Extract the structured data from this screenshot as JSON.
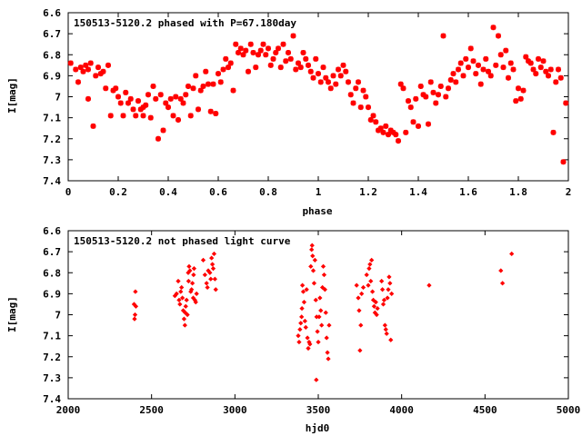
{
  "chart_data": [
    {
      "type": "scatter",
      "title": "150513-5120.2 phased with P=67.180day",
      "xlabel": "phase",
      "ylabel": "I[mag]",
      "xlim": [
        0,
        2
      ],
      "ylim": [
        6.6,
        7.4
      ],
      "y_inverted": true,
      "x_ticks": [
        0,
        0.2,
        0.4,
        0.6,
        0.8,
        1,
        1.2,
        1.4,
        1.6,
        1.8,
        2
      ],
      "x_tick_labels": [
        "0",
        "0.2",
        "0.4",
        "0.6",
        "0.8",
        "1",
        "1.2",
        "1.4",
        "1.6",
        "1.8",
        "2"
      ],
      "y_ticks": [
        6.6,
        6.7,
        6.8,
        6.9,
        7.0,
        7.1,
        7.2,
        7.3,
        7.4
      ],
      "y_tick_labels": [
        "6.6",
        "6.7",
        "6.8",
        "6.9",
        "7",
        "7.1",
        "7.2",
        "7.3",
        "7.4"
      ],
      "marker_color": "#ff0000",
      "marker": "star",
      "points": [
        [
          0.01,
          6.84
        ],
        [
          0.03,
          6.87
        ],
        [
          0.04,
          6.93
        ],
        [
          0.05,
          6.86
        ],
        [
          0.06,
          6.88
        ],
        [
          0.07,
          6.85
        ],
        [
          0.08,
          6.87
        ],
        [
          0.08,
          7.01
        ],
        [
          0.09,
          6.84
        ],
        [
          0.1,
          7.14
        ],
        [
          0.11,
          6.9
        ],
        [
          0.12,
          6.86
        ],
        [
          0.13,
          6.89
        ],
        [
          0.14,
          6.88
        ],
        [
          0.15,
          6.96
        ],
        [
          0.16,
          6.85
        ],
        [
          0.17,
          7.09
        ],
        [
          0.18,
          6.97
        ],
        [
          0.19,
          6.96
        ],
        [
          0.2,
          7.0
        ],
        [
          0.21,
          7.03
        ],
        [
          0.22,
          7.09
        ],
        [
          0.23,
          6.98
        ],
        [
          0.24,
          7.03
        ],
        [
          0.25,
          7.01
        ],
        [
          0.26,
          7.06
        ],
        [
          0.27,
          7.09
        ],
        [
          0.28,
          7.02
        ],
        [
          0.29,
          7.06
        ],
        [
          0.3,
          7.05
        ],
        [
          0.3,
          7.09
        ],
        [
          0.31,
          7.04
        ],
        [
          0.32,
          6.99
        ],
        [
          0.33,
          7.1
        ],
        [
          0.34,
          6.95
        ],
        [
          0.35,
          7.01
        ],
        [
          0.36,
          7.2
        ],
        [
          0.37,
          6.99
        ],
        [
          0.38,
          7.16
        ],
        [
          0.39,
          7.03
        ],
        [
          0.4,
          7.05
        ],
        [
          0.41,
          7.01
        ],
        [
          0.42,
          7.09
        ],
        [
          0.43,
          7.0
        ],
        [
          0.44,
          7.11
        ],
        [
          0.45,
          7.01
        ],
        [
          0.46,
          7.03
        ],
        [
          0.47,
          6.99
        ],
        [
          0.48,
          6.95
        ],
        [
          0.49,
          7.09
        ],
        [
          0.5,
          6.96
        ],
        [
          0.51,
          6.9
        ],
        [
          0.52,
          7.06
        ],
        [
          0.53,
          6.97
        ],
        [
          0.54,
          6.95
        ],
        [
          0.55,
          6.88
        ],
        [
          0.56,
          6.94
        ],
        [
          0.57,
          7.07
        ],
        [
          0.58,
          6.94
        ],
        [
          0.59,
          7.08
        ],
        [
          0.6,
          6.89
        ],
        [
          0.61,
          6.93
        ],
        [
          0.62,
          6.87
        ],
        [
          0.63,
          6.82
        ],
        [
          0.64,
          6.86
        ],
        [
          0.65,
          6.84
        ],
        [
          0.66,
          6.97
        ],
        [
          0.67,
          6.75
        ],
        [
          0.68,
          6.79
        ],
        [
          0.69,
          6.77
        ],
        [
          0.7,
          6.8
        ],
        [
          0.71,
          6.78
        ],
        [
          0.72,
          6.88
        ],
        [
          0.73,
          6.75
        ],
        [
          0.74,
          6.79
        ],
        [
          0.75,
          6.86
        ],
        [
          0.76,
          6.8
        ],
        [
          0.77,
          6.78
        ],
        [
          0.78,
          6.75
        ],
        [
          0.79,
          6.8
        ],
        [
          0.8,
          6.77
        ],
        [
          0.81,
          6.85
        ],
        [
          0.82,
          6.82
        ],
        [
          0.83,
          6.79
        ],
        [
          0.84,
          6.77
        ],
        [
          0.85,
          6.86
        ],
        [
          0.86,
          6.75
        ],
        [
          0.87,
          6.83
        ],
        [
          0.88,
          6.79
        ],
        [
          0.89,
          6.82
        ],
        [
          0.9,
          6.71
        ],
        [
          0.91,
          6.87
        ],
        [
          0.92,
          6.84
        ],
        [
          0.93,
          6.86
        ],
        [
          0.94,
          6.79
        ],
        [
          0.95,
          6.82
        ],
        [
          0.96,
          6.85
        ],
        [
          0.97,
          6.88
        ],
        [
          0.98,
          6.91
        ],
        [
          0.99,
          6.82
        ],
        [
          1.0,
          6.89
        ],
        [
          1.01,
          6.93
        ],
        [
          1.02,
          6.86
        ],
        [
          1.03,
          6.91
        ],
        [
          1.04,
          6.93
        ],
        [
          1.05,
          6.96
        ],
        [
          1.06,
          6.9
        ],
        [
          1.07,
          6.94
        ],
        [
          1.08,
          6.87
        ],
        [
          1.09,
          6.9
        ],
        [
          1.1,
          6.85
        ],
        [
          1.11,
          6.88
        ],
        [
          1.12,
          6.93
        ],
        [
          1.13,
          6.99
        ],
        [
          1.14,
          7.03
        ],
        [
          1.15,
          6.96
        ],
        [
          1.16,
          6.93
        ],
        [
          1.17,
          7.05
        ],
        [
          1.18,
          6.97
        ],
        [
          1.19,
          7.0
        ],
        [
          1.2,
          7.05
        ],
        [
          1.21,
          7.11
        ],
        [
          1.22,
          7.09
        ],
        [
          1.23,
          7.12
        ],
        [
          1.24,
          7.16
        ],
        [
          1.25,
          7.15
        ],
        [
          1.26,
          7.17
        ],
        [
          1.27,
          7.14
        ],
        [
          1.28,
          7.18
        ],
        [
          1.29,
          7.16
        ],
        [
          1.3,
          7.17
        ],
        [
          1.31,
          7.18
        ],
        [
          1.32,
          7.21
        ],
        [
          1.33,
          6.94
        ],
        [
          1.34,
          6.96
        ],
        [
          1.35,
          7.17
        ],
        [
          1.36,
          7.02
        ],
        [
          1.37,
          7.05
        ],
        [
          1.38,
          7.12
        ],
        [
          1.39,
          7.01
        ],
        [
          1.4,
          7.14
        ],
        [
          1.41,
          6.95
        ],
        [
          1.42,
          6.99
        ],
        [
          1.43,
          7.0
        ],
        [
          1.44,
          7.13
        ],
        [
          1.45,
          6.93
        ],
        [
          1.46,
          6.98
        ],
        [
          1.47,
          7.03
        ],
        [
          1.48,
          6.99
        ],
        [
          1.49,
          6.95
        ],
        [
          1.5,
          6.71
        ],
        [
          1.51,
          7.0
        ],
        [
          1.52,
          6.96
        ],
        [
          1.53,
          6.92
        ],
        [
          1.54,
          6.89
        ],
        [
          1.55,
          6.93
        ],
        [
          1.56,
          6.87
        ],
        [
          1.57,
          6.84
        ],
        [
          1.58,
          6.9
        ],
        [
          1.59,
          6.82
        ],
        [
          1.6,
          6.86
        ],
        [
          1.61,
          6.77
        ],
        [
          1.62,
          6.83
        ],
        [
          1.63,
          6.89
        ],
        [
          1.64,
          6.85
        ],
        [
          1.65,
          6.94
        ],
        [
          1.66,
          6.87
        ],
        [
          1.67,
          6.82
        ],
        [
          1.68,
          6.88
        ],
        [
          1.69,
          6.9
        ],
        [
          1.7,
          6.67
        ],
        [
          1.71,
          6.85
        ],
        [
          1.72,
          6.71
        ],
        [
          1.73,
          6.8
        ],
        [
          1.74,
          6.86
        ],
        [
          1.75,
          6.78
        ],
        [
          1.76,
          6.91
        ],
        [
          1.77,
          6.84
        ],
        [
          1.78,
          6.87
        ],
        [
          1.79,
          7.02
        ],
        [
          1.8,
          6.96
        ],
        [
          1.81,
          7.01
        ],
        [
          1.82,
          6.97
        ],
        [
          1.83,
          6.81
        ],
        [
          1.84,
          6.83
        ],
        [
          1.85,
          6.84
        ],
        [
          1.86,
          6.87
        ],
        [
          1.87,
          6.89
        ],
        [
          1.88,
          6.82
        ],
        [
          1.89,
          6.86
        ],
        [
          1.9,
          6.83
        ],
        [
          1.91,
          6.88
        ],
        [
          1.92,
          6.9
        ],
        [
          1.93,
          6.87
        ],
        [
          1.94,
          7.17
        ],
        [
          1.95,
          6.93
        ],
        [
          1.96,
          6.87
        ],
        [
          1.97,
          6.91
        ],
        [
          1.98,
          7.31
        ],
        [
          1.99,
          7.03
        ]
      ]
    },
    {
      "type": "scatter",
      "title": "150513-5120.2 not phased light curve",
      "xlabel": "hjd0",
      "ylabel": "I[mag]",
      "xlim": [
        2000,
        5000
      ],
      "ylim": [
        6.6,
        7.4
      ],
      "y_inverted": true,
      "x_ticks": [
        2000,
        2500,
        3000,
        3500,
        4000,
        4500,
        5000
      ],
      "x_tick_labels": [
        "2000",
        "2500",
        "3000",
        "3500",
        "4000",
        "4500",
        "5000"
      ],
      "y_ticks": [
        6.6,
        6.7,
        6.8,
        6.9,
        7.0,
        7.1,
        7.2,
        7.3,
        7.4
      ],
      "y_tick_labels": [
        "6.6",
        "6.7",
        "6.8",
        "6.9",
        "7",
        "7.1",
        "7.2",
        "7.3",
        "7.4"
      ],
      "marker_color": "#ff0000",
      "marker": "diamond",
      "points": [
        [
          2395,
          6.95
        ],
        [
          2398,
          7.02
        ],
        [
          2401,
          7.0
        ],
        [
          2403,
          6.89
        ],
        [
          2406,
          6.96
        ],
        [
          2640,
          6.91
        ],
        [
          2650,
          6.9
        ],
        [
          2660,
          6.84
        ],
        [
          2665,
          6.93
        ],
        [
          2670,
          6.95
        ],
        [
          2675,
          6.89
        ],
        [
          2680,
          6.87
        ],
        [
          2685,
          6.92
        ],
        [
          2690,
          6.98
        ],
        [
          2695,
          7.02
        ],
        [
          2700,
          7.05
        ],
        [
          2702,
          6.99
        ],
        [
          2705,
          6.96
        ],
        [
          2710,
          6.93
        ],
        [
          2715,
          7.0
        ],
        [
          2720,
          6.8
        ],
        [
          2722,
          6.84
        ],
        [
          2725,
          6.77
        ],
        [
          2730,
          6.79
        ],
        [
          2735,
          6.89
        ],
        [
          2740,
          6.88
        ],
        [
          2745,
          6.85
        ],
        [
          2750,
          6.92
        ],
        [
          2752,
          6.81
        ],
        [
          2755,
          6.78
        ],
        [
          2760,
          6.93
        ],
        [
          2765,
          6.94
        ],
        [
          2770,
          6.9
        ],
        [
          2810,
          6.74
        ],
        [
          2820,
          6.81
        ],
        [
          2830,
          6.85
        ],
        [
          2835,
          6.87
        ],
        [
          2840,
          6.79
        ],
        [
          2850,
          6.8
        ],
        [
          2855,
          6.83
        ],
        [
          2860,
          6.73
        ],
        [
          2865,
          6.76
        ],
        [
          2870,
          6.78
        ],
        [
          2875,
          6.71
        ],
        [
          2880,
          6.83
        ],
        [
          2885,
          6.88
        ],
        [
          3380,
          7.1
        ],
        [
          3385,
          7.13
        ],
        [
          3390,
          7.07
        ],
        [
          3395,
          7.04
        ],
        [
          3400,
          7.01
        ],
        [
          3402,
          6.97
        ],
        [
          3405,
          6.86
        ],
        [
          3410,
          6.89
        ],
        [
          3415,
          6.94
        ],
        [
          3420,
          7.03
        ],
        [
          3425,
          7.06
        ],
        [
          3430,
          6.88
        ],
        [
          3435,
          7.11
        ],
        [
          3440,
          7.16
        ],
        [
          3445,
          7.13
        ],
        [
          3450,
          7.14
        ],
        [
          3455,
          6.77
        ],
        [
          3460,
          6.69
        ],
        [
          3463,
          6.67
        ],
        [
          3466,
          6.72
        ],
        [
          3470,
          6.79
        ],
        [
          3475,
          6.85
        ],
        [
          3480,
          6.74
        ],
        [
          3485,
          6.93
        ],
        [
          3488,
          7.31
        ],
        [
          3490,
          7.01
        ],
        [
          3495,
          7.08
        ],
        [
          3500,
          7.13
        ],
        [
          3505,
          7.01
        ],
        [
          3510,
          6.92
        ],
        [
          3515,
          6.98
        ],
        [
          3520,
          7.05
        ],
        [
          3525,
          6.87
        ],
        [
          3530,
          6.77
        ],
        [
          3535,
          6.81
        ],
        [
          3540,
          6.88
        ],
        [
          3545,
          6.99
        ],
        [
          3550,
          7.11
        ],
        [
          3555,
          7.18
        ],
        [
          3560,
          7.21
        ],
        [
          3565,
          7.05
        ],
        [
          3730,
          6.86
        ],
        [
          3740,
          6.92
        ],
        [
          3745,
          6.98
        ],
        [
          3750,
          7.17
        ],
        [
          3755,
          7.05
        ],
        [
          3760,
          6.9
        ],
        [
          3770,
          6.87
        ],
        [
          3790,
          6.81
        ],
        [
          3800,
          6.86
        ],
        [
          3805,
          6.78
        ],
        [
          3810,
          6.76
        ],
        [
          3815,
          6.84
        ],
        [
          3820,
          6.74
        ],
        [
          3825,
          6.89
        ],
        [
          3830,
          6.93
        ],
        [
          3835,
          6.96
        ],
        [
          3840,
          6.99
        ],
        [
          3845,
          6.94
        ],
        [
          3850,
          7.0
        ],
        [
          3855,
          6.97
        ],
        [
          3880,
          6.84
        ],
        [
          3885,
          6.88
        ],
        [
          3890,
          6.95
        ],
        [
          3895,
          6.93
        ],
        [
          3900,
          7.05
        ],
        [
          3905,
          7.07
        ],
        [
          3910,
          7.09
        ],
        [
          3915,
          6.92
        ],
        [
          3920,
          6.88
        ],
        [
          3925,
          6.82
        ],
        [
          3930,
          6.85
        ],
        [
          3935,
          7.12
        ],
        [
          3940,
          6.9
        ],
        [
          4165,
          6.86
        ],
        [
          4595,
          6.79
        ],
        [
          4605,
          6.85
        ],
        [
          4660,
          6.71
        ]
      ]
    }
  ]
}
